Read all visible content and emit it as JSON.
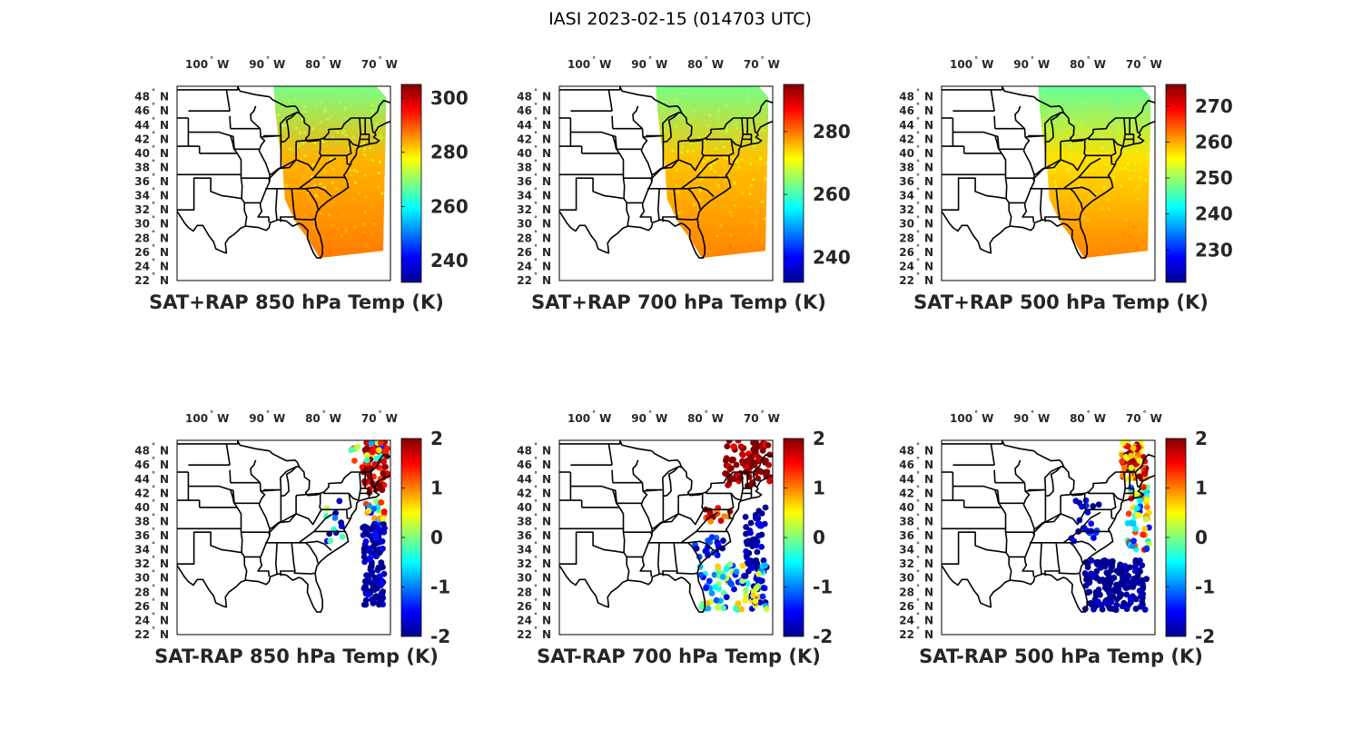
{
  "figure": {
    "title": "IASI 2023-02-15 (014703 UTC)"
  },
  "longitude_ticks": [
    "100° W",
    "90° W",
    "80° W",
    "70° W"
  ],
  "latitude_ticks": [
    "48° N",
    "46° N",
    "44° N",
    "42° N",
    "40° N",
    "38° N",
    "36° N",
    "34° N",
    "32° N",
    "30° N",
    "28° N",
    "26° N",
    "24° N",
    "22° N"
  ],
  "map_extent": {
    "lon_range": [
      -106,
      -68
    ],
    "lat_range": [
      22,
      49.5
    ]
  },
  "colormap": "jet",
  "panels": [
    {
      "id": "sat-rap-850",
      "label": "SAT+RAP 850 hPa Temp (K)",
      "kind": "total",
      "colorbar": {
        "range": [
          232,
          305
        ],
        "ticks": [
          "300",
          "280",
          "260",
          "240"
        ],
        "tick_values": [
          300,
          280,
          260,
          240
        ]
      },
      "swath_mean_k": {
        "north": 268,
        "middle": 283,
        "south": 287
      }
    },
    {
      "id": "sat-rap-700",
      "label": "SAT+RAP 700 hPa Temp (K)",
      "kind": "total",
      "colorbar": {
        "range": [
          232,
          295
        ],
        "ticks": [
          "280",
          "260",
          "240"
        ],
        "tick_values": [
          280,
          260,
          240
        ]
      },
      "swath_mean_k": {
        "north": 263,
        "middle": 275,
        "south": 279
      }
    },
    {
      "id": "sat-rap-500",
      "label": "SAT+RAP 500 hPa Temp (K)",
      "kind": "total",
      "colorbar": {
        "range": [
          221,
          276
        ],
        "ticks": [
          "270",
          "260",
          "250",
          "240",
          "230"
        ],
        "tick_values": [
          270,
          260,
          250,
          240,
          230
        ]
      },
      "swath_mean_k": {
        "north": 247,
        "middle": 257,
        "south": 262
      }
    },
    {
      "id": "sat-minus-rap-850",
      "label": "SAT-RAP 850 hPa Temp (K)",
      "kind": "difference",
      "colorbar": {
        "range": [
          -2,
          2
        ],
        "ticks": [
          "2",
          "1",
          "0",
          "-1",
          "-2"
        ],
        "tick_values": [
          2,
          1,
          0,
          -1,
          -2
        ]
      },
      "difference_summary_k": {
        "northeast": 2,
        "offshore_south": -2
      }
    },
    {
      "id": "sat-minus-rap-700",
      "label": "SAT-RAP 700 hPa Temp (K)",
      "kind": "difference",
      "colorbar": {
        "range": [
          -2,
          2
        ],
        "ticks": [
          "2",
          "1",
          "0",
          "-1",
          "-2"
        ],
        "tick_values": [
          2,
          1,
          0,
          -1,
          -2
        ]
      },
      "difference_summary_k": {
        "northeast": 2,
        "offshore_south": -2
      }
    },
    {
      "id": "sat-minus-rap-500",
      "label": "SAT-RAP 500 hPa Temp (K)",
      "kind": "difference",
      "colorbar": {
        "range": [
          -2,
          2
        ],
        "ticks": [
          "2",
          "1",
          "0",
          "-1",
          "-2"
        ],
        "tick_values": [
          2,
          1,
          0,
          -1,
          -2
        ]
      },
      "difference_summary_k": {
        "northeast": 1.8,
        "offshore_south": -2
      }
    }
  ]
}
